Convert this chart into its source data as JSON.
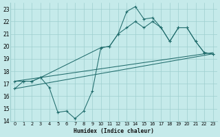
{
  "xlabel": "Humidex (Indice chaleur)",
  "bg_color": "#c5eaea",
  "grid_color": "#9ecece",
  "line_color": "#1f6b6b",
  "xlim": [
    -0.5,
    23.5
  ],
  "ylim": [
    14,
    23.5
  ],
  "xticks": [
    0,
    1,
    2,
    3,
    4,
    5,
    6,
    7,
    8,
    9,
    10,
    11,
    12,
    13,
    14,
    15,
    16,
    17,
    18,
    19,
    20,
    21,
    22,
    23
  ],
  "yticks": [
    14,
    15,
    16,
    17,
    18,
    19,
    20,
    21,
    22,
    23
  ],
  "series": [
    {
      "x": [
        0,
        1,
        2,
        3,
        4,
        5,
        6,
        7,
        8,
        9,
        10,
        11,
        12,
        13,
        14,
        15,
        16,
        17,
        18,
        19,
        20,
        21,
        22,
        23
      ],
      "y": [
        16.6,
        17.2,
        17.2,
        17.5,
        16.7,
        14.7,
        14.8,
        14.2,
        14.8,
        16.4,
        19.9,
        20.0,
        21.0,
        22.8,
        23.2,
        22.2,
        22.3,
        21.5,
        20.4,
        21.5,
        21.5,
        20.4,
        19.5,
        19.4
      ],
      "marker": true
    },
    {
      "x": [
        0,
        1,
        2,
        3,
        10,
        11,
        12,
        13,
        14,
        15,
        16,
        17,
        18,
        19,
        20,
        21,
        22,
        23
      ],
      "y": [
        17.2,
        17.2,
        17.2,
        17.5,
        19.9,
        20.0,
        21.0,
        21.5,
        22.0,
        21.5,
        22.0,
        21.5,
        20.4,
        21.5,
        21.5,
        20.4,
        19.5,
        19.4
      ],
      "marker": true
    },
    {
      "x": [
        0,
        23
      ],
      "y": [
        17.2,
        19.5
      ],
      "marker": false
    },
    {
      "x": [
        0,
        23
      ],
      "y": [
        16.6,
        19.4
      ],
      "marker": false
    }
  ]
}
